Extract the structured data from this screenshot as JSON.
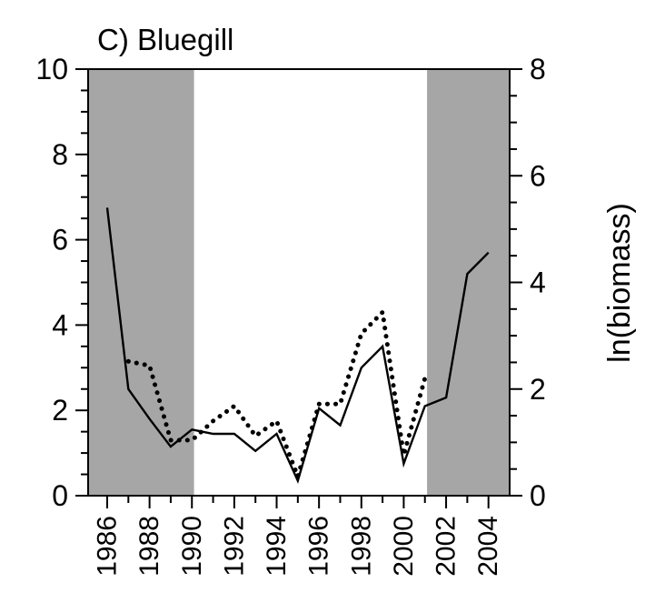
{
  "chart_data": {
    "type": "line",
    "title": "C) Bluegill",
    "xlabel": "",
    "ylabel_left": "",
    "ylabel_right": "ln(biomass)",
    "xlim": [
      1985.1,
      2005.0
    ],
    "ylim_left": [
      0,
      10
    ],
    "ylim_right": [
      0,
      8
    ],
    "x_tick_labels": [
      "1986",
      "1988",
      "1990",
      "1992",
      "1994",
      "1996",
      "1998",
      "2000",
      "2002",
      "2004"
    ],
    "x_ticks": [
      1986,
      1987,
      1988,
      1989,
      1990,
      1991,
      1992,
      1993,
      1994,
      1995,
      1996,
      1997,
      1998,
      1999,
      2000,
      2001,
      2002,
      2003,
      2004
    ],
    "y_left_tick_labels": [
      "0",
      "2",
      "4",
      "6",
      "8",
      "10"
    ],
    "y_left_ticks": [
      0,
      0.5,
      1,
      1.5,
      2,
      2.5,
      3,
      3.5,
      4,
      4.5,
      5,
      5.5,
      6,
      6.5,
      7,
      7.5,
      8,
      8.5,
      9,
      9.5,
      10
    ],
    "y_right_tick_labels": [
      "0",
      "2",
      "4",
      "6",
      "8"
    ],
    "y_right_ticks": [
      0,
      0.5,
      1,
      1.5,
      2,
      2.5,
      3,
      3.5,
      4,
      4.5,
      5,
      5.5,
      6,
      6.5,
      7,
      7.5,
      8
    ],
    "shaded_periods": [
      [
        1985.1,
        1990.1
      ],
      [
        2001.1,
        2005.0
      ]
    ],
    "shade_color": "#a6a6a6",
    "grid": false,
    "series": [
      {
        "style": "solid",
        "axis": "left",
        "x": [
          1986,
          1987,
          1988,
          1989,
          1990,
          1991,
          1992,
          1993,
          1994,
          1995,
          1996,
          1997,
          1998,
          1999,
          2000,
          2001,
          2002,
          2003,
          2004
        ],
        "y": [
          6.75,
          2.5,
          1.8,
          1.15,
          1.55,
          1.45,
          1.45,
          1.05,
          1.45,
          0.35,
          2.05,
          1.65,
          3.0,
          3.5,
          0.75,
          2.1,
          2.3,
          5.2,
          5.7
        ]
      },
      {
        "style": "dotted",
        "axis": "left",
        "x": [
          1987,
          1988,
          1989,
          1990,
          1991,
          1992,
          1993,
          1994,
          1995,
          1996,
          1997,
          1998,
          1999,
          2000,
          2001
        ],
        "y": [
          3.15,
          3.05,
          1.3,
          1.3,
          1.75,
          2.1,
          1.4,
          1.75,
          0.45,
          2.15,
          2.15,
          3.8,
          4.3,
          0.95,
          2.75
        ]
      }
    ]
  }
}
